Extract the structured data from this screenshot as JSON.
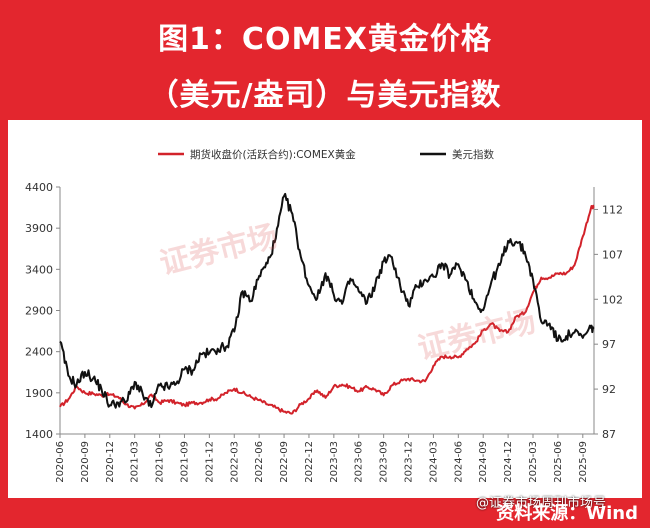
{
  "title": {
    "line1": "图1：COMEX黄金价格",
    "line2": "（美元/盎司）与美元指数"
  },
  "source": "资料来源：Wind",
  "credit": "@证券市场周刊市场号",
  "watermark": "证券市场",
  "colors": {
    "background": "#e3262e",
    "gold": "#d2222a",
    "usd": "#111111"
  },
  "chart_data": {
    "type": "line",
    "legend_position": "top",
    "grid": false,
    "x_ticks": [
      "2020-06",
      "2020-09",
      "2020-12",
      "2021-03",
      "2021-06",
      "2021-09",
      "2021-12",
      "2022-03",
      "2022-06",
      "2022-09",
      "2022-12",
      "2023-03",
      "2023-06",
      "2023-09",
      "2023-12",
      "2024-03",
      "2024-06",
      "2024-09",
      "2024-12",
      "2025-03",
      "2025-06",
      "2025-09"
    ],
    "y_left": {
      "ticks": [
        1400,
        1900,
        2400,
        2900,
        3400,
        3900,
        4400
      ],
      "lim": [
        1400,
        4400
      ]
    },
    "y_right": {
      "ticks": [
        87,
        92,
        97,
        102,
        107,
        112
      ],
      "lim": [
        87,
        114.5
      ]
    },
    "series": [
      {
        "name": "期货收盘价(活跃合约):COMEX黄金",
        "axis": "left",
        "x": [
          "2020-06",
          "2020-07",
          "2020-08",
          "2020-09",
          "2020-10",
          "2020-11",
          "2020-12",
          "2021-01",
          "2021-02",
          "2021-03",
          "2021-04",
          "2021-05",
          "2021-06",
          "2021-07",
          "2021-08",
          "2021-09",
          "2021-10",
          "2021-11",
          "2021-12",
          "2022-01",
          "2022-02",
          "2022-03",
          "2022-04",
          "2022-05",
          "2022-06",
          "2022-07",
          "2022-08",
          "2022-09",
          "2022-10",
          "2022-11",
          "2022-12",
          "2023-01",
          "2023-02",
          "2023-03",
          "2023-04",
          "2023-05",
          "2023-06",
          "2023-07",
          "2023-08",
          "2023-09",
          "2023-10",
          "2023-11",
          "2023-12",
          "2024-01",
          "2024-02",
          "2024-03",
          "2024-04",
          "2024-05",
          "2024-06",
          "2024-07",
          "2024-08",
          "2024-09",
          "2024-10",
          "2024-11",
          "2024-12",
          "2025-01",
          "2025-02",
          "2025-03",
          "2025-04",
          "2025-05",
          "2025-06",
          "2025-07",
          "2025-08",
          "2025-09",
          "2025-10"
        ],
        "values": [
          1730,
          1820,
          1980,
          1900,
          1890,
          1870,
          1880,
          1850,
          1760,
          1710,
          1760,
          1880,
          1780,
          1810,
          1780,
          1750,
          1780,
          1780,
          1820,
          1830,
          1900,
          1950,
          1900,
          1850,
          1810,
          1760,
          1720,
          1670,
          1650,
          1760,
          1830,
          1930,
          1840,
          1980,
          2000,
          1970,
          1920,
          1970,
          1940,
          1870,
          1990,
          2040,
          2070,
          2050,
          2040,
          2230,
          2340,
          2340,
          2330,
          2430,
          2500,
          2660,
          2740,
          2650,
          2640,
          2830,
          2870,
          3120,
          3300,
          3300,
          3350,
          3350,
          3450,
          3800,
          4150
        ]
      },
      {
        "name": "美元指数",
        "axis": "right",
        "x": [
          "2020-06",
          "2020-07",
          "2020-08",
          "2020-09",
          "2020-10",
          "2020-11",
          "2020-12",
          "2021-01",
          "2021-02",
          "2021-03",
          "2021-04",
          "2021-05",
          "2021-06",
          "2021-07",
          "2021-08",
          "2021-09",
          "2021-10",
          "2021-11",
          "2021-12",
          "2022-01",
          "2022-02",
          "2022-03",
          "2022-04",
          "2022-05",
          "2022-06",
          "2022-07",
          "2022-08",
          "2022-09",
          "2022-10",
          "2022-11",
          "2022-12",
          "2023-01",
          "2023-02",
          "2023-03",
          "2023-04",
          "2023-05",
          "2023-06",
          "2023-07",
          "2023-08",
          "2023-09",
          "2023-10",
          "2023-11",
          "2023-12",
          "2024-01",
          "2024-02",
          "2024-03",
          "2024-04",
          "2024-05",
          "2024-06",
          "2024-07",
          "2024-08",
          "2024-09",
          "2024-10",
          "2024-11",
          "2024-12",
          "2025-01",
          "2025-02",
          "2025-03",
          "2025-04",
          "2025-05",
          "2025-06",
          "2025-07",
          "2025-08",
          "2025-09",
          "2025-10"
        ],
        "values": [
          97.3,
          93.5,
          92.5,
          93.9,
          93.2,
          92.0,
          90.2,
          90.5,
          90.6,
          92.8,
          91.3,
          90.0,
          92.4,
          92.2,
          92.6,
          94.2,
          94.1,
          95.9,
          96.0,
          96.5,
          96.7,
          98.4,
          102.9,
          101.8,
          104.6,
          106.0,
          108.8,
          113.5,
          111.5,
          106.8,
          103.5,
          102.1,
          104.9,
          102.5,
          101.5,
          104.3,
          102.9,
          101.6,
          103.6,
          106.2,
          106.7,
          103.5,
          101.3,
          103.4,
          104.2,
          104.5,
          106.0,
          104.7,
          105.9,
          104.1,
          101.7,
          100.8,
          104.0,
          105.8,
          108.5,
          108.4,
          107.3,
          104.2,
          99.5,
          99.3,
          97.4,
          97.9,
          98.3,
          97.7,
          98.8
        ]
      }
    ]
  }
}
